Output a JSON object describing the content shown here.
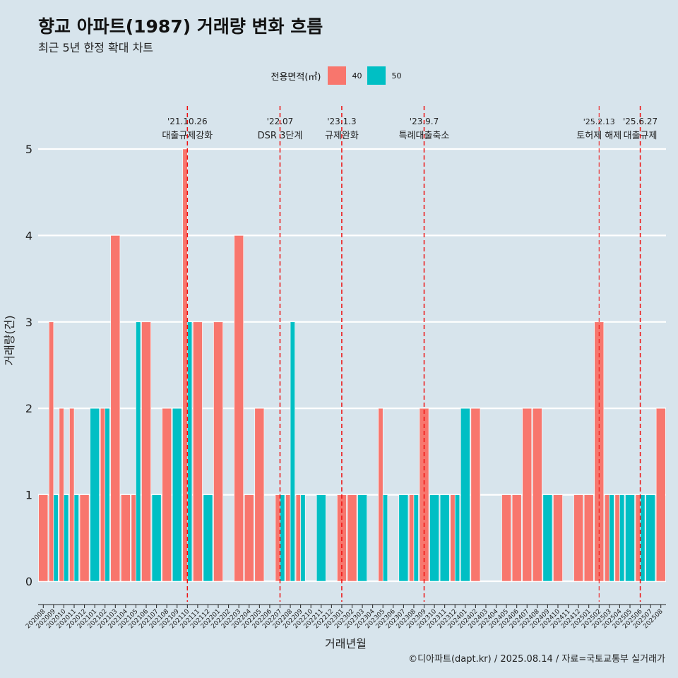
{
  "title": "향교 아파트(1987) 거래량 변화 흐름",
  "subtitle": "최근 5년 한정 확대 차트",
  "caption": "©디아파트(dapt.kr) / 2025.08.14 / 자료=국토교통부 실거래가",
  "legend": {
    "title": "전용면적(㎡)",
    "items": [
      {
        "label": "40",
        "color": "#F8766D"
      },
      {
        "label": "50",
        "color": "#00BFC4"
      }
    ]
  },
  "chart_data": {
    "type": "bar",
    "xlabel": "거래년월",
    "ylabel": "거래량(건)",
    "ylim": [
      0,
      5
    ],
    "yticks": [
      0,
      1,
      2,
      3,
      4,
      5
    ],
    "categories": [
      "202008",
      "202009",
      "202010",
      "202011",
      "202012",
      "202101",
      "202102",
      "202103",
      "202104",
      "202105",
      "202106",
      "202107",
      "202108",
      "202109",
      "202110",
      "202111",
      "202112",
      "202201",
      "202202",
      "202203",
      "202204",
      "202205",
      "202206",
      "202207",
      "202208",
      "202209",
      "202210",
      "202211",
      "202212",
      "202301",
      "202302",
      "202303",
      "202304",
      "202305",
      "202306",
      "202307",
      "202308",
      "202309",
      "202310",
      "202311",
      "202312",
      "202401",
      "202402",
      "202403",
      "202404",
      "202405",
      "202406",
      "202407",
      "202408",
      "202409",
      "202410",
      "202411",
      "202412",
      "202501",
      "202502",
      "202503",
      "202504",
      "202505",
      "202506",
      "202507",
      "202508"
    ],
    "series": [
      {
        "name": "40",
        "color": "#F8766D",
        "values": [
          1,
          3,
          2,
          2,
          1,
          0,
          2,
          4,
          1,
          1,
          3,
          0,
          2,
          0,
          5,
          3,
          0,
          3,
          0,
          4,
          1,
          2,
          0,
          1,
          1,
          1,
          0,
          0,
          0,
          1,
          1,
          0,
          0,
          2,
          0,
          0,
          1,
          2,
          0,
          0,
          1,
          0,
          2,
          0,
          0,
          1,
          1,
          2,
          2,
          0,
          1,
          0,
          1,
          1,
          3,
          1,
          1,
          0,
          1,
          0,
          2
        ]
      },
      {
        "name": "50",
        "color": "#00BFC4",
        "values": [
          0,
          1,
          1,
          1,
          0,
          2,
          2,
          0,
          0,
          3,
          0,
          1,
          0,
          2,
          3,
          0,
          1,
          0,
          0,
          0,
          0,
          0,
          0,
          1,
          3,
          1,
          0,
          1,
          0,
          0,
          0,
          1,
          0,
          1,
          0,
          1,
          1,
          0,
          1,
          1,
          1,
          2,
          0,
          0,
          0,
          0,
          0,
          0,
          0,
          1,
          0,
          0,
          0,
          0,
          0,
          1,
          1,
          1,
          1,
          1,
          0
        ]
      }
    ],
    "events": [
      {
        "date": "'21.10.26",
        "label": "대출규제강화",
        "category": "202110"
      },
      {
        "date": "'22.07",
        "label": "DSR 3단계",
        "category": "202207"
      },
      {
        "date": "'23.1.3",
        "label": "규제완화",
        "category": "202301"
      },
      {
        "date": "'23.9.7",
        "label": "특례대출축소",
        "category": "202309"
      },
      {
        "date": "'25.2.13",
        "label": "토허제 해제",
        "category": "202502"
      },
      {
        "date": "'25.6.27",
        "label": "대출규제",
        "category": "202506"
      }
    ],
    "grid": true
  }
}
